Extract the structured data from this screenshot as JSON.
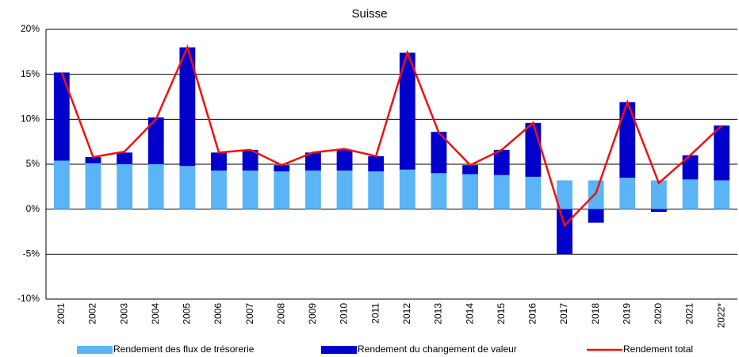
{
  "chart_data": {
    "type": "stacked-bar-line",
    "title": "Suisse",
    "categories": [
      "2001",
      "2002",
      "2003",
      "2004",
      "2005",
      "2006",
      "2007",
      "2008",
      "2009",
      "2010",
      "2011",
      "2012",
      "2013",
      "2014",
      "2015",
      "2016",
      "2017",
      "2018",
      "2019",
      "2020",
      "2021",
      "2022*"
    ],
    "series": [
      {
        "name": "Rendement des flux de trésorerie",
        "type": "bar",
        "color": "#5ab4f5",
        "values": [
          5.4,
          5.1,
          5.0,
          5.0,
          4.8,
          4.3,
          4.3,
          4.2,
          4.3,
          4.3,
          4.2,
          4.4,
          4.0,
          3.9,
          3.8,
          3.6,
          3.2,
          3.2,
          3.5,
          3.2,
          3.3,
          3.2
        ]
      },
      {
        "name": "Rendement du changement de valeur",
        "type": "bar",
        "color": "#0000cc",
        "values": [
          9.8,
          0.7,
          1.3,
          5.2,
          13.2,
          2.0,
          2.3,
          0.7,
          2.0,
          2.3,
          1.7,
          13.0,
          4.6,
          1.0,
          2.8,
          6.0,
          -5.0,
          -1.5,
          8.4,
          -0.3,
          2.7,
          6.1
        ]
      },
      {
        "name": "Rendement total",
        "type": "line",
        "color": "#ee1111",
        "values": [
          15.2,
          5.8,
          6.4,
          10.0,
          18.0,
          6.3,
          6.6,
          4.9,
          6.3,
          6.7,
          5.9,
          17.4,
          8.5,
          4.9,
          6.6,
          9.6,
          -1.8,
          1.8,
          11.9,
          2.9,
          6.0,
          9.3
        ]
      }
    ],
    "ylim": [
      -10,
      20
    ],
    "yticks": [
      {
        "value": -10,
        "label": "-10%"
      },
      {
        "value": -5,
        "label": "-5%"
      },
      {
        "value": 0,
        "label": "0%"
      },
      {
        "value": 5,
        "label": "5%"
      },
      {
        "value": 10,
        "label": "10%"
      },
      {
        "value": 15,
        "label": "15%"
      },
      {
        "value": 20,
        "label": "20%"
      }
    ],
    "grid": true
  }
}
